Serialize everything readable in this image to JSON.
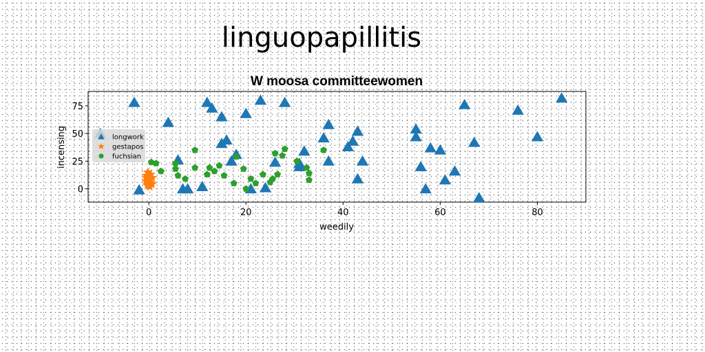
{
  "page": {
    "heading": "linguopapillitis"
  },
  "colors": {
    "longwork": "#1f77b4",
    "gestapos": "#ff7f0e",
    "fuchsian": "#2ca02c",
    "background": "#ffffff",
    "axes": "#000000"
  },
  "chart_data": {
    "type": "scatter",
    "title": "W moosa committeewomen",
    "xlabel": "weedily",
    "ylabel": "incensing",
    "xlim": [
      -12.5,
      90
    ],
    "ylim": [
      -12,
      88
    ],
    "xticks": [
      0,
      20,
      40,
      60,
      80
    ],
    "yticks": [
      0,
      25,
      50,
      75
    ],
    "grid": false,
    "legend_position": "center-left",
    "series": [
      {
        "name": "longwork",
        "marker": "triangle",
        "points": [
          [
            -10,
            50
          ],
          [
            -3,
            78
          ],
          [
            -2,
            -1
          ],
          [
            4,
            60
          ],
          [
            6,
            26
          ],
          [
            7,
            0
          ],
          [
            8,
            0
          ],
          [
            11,
            2
          ],
          [
            12,
            78
          ],
          [
            13,
            73
          ],
          [
            15,
            41
          ],
          [
            15,
            65
          ],
          [
            16,
            44
          ],
          [
            17,
            25
          ],
          [
            18,
            31
          ],
          [
            20,
            68
          ],
          [
            21,
            0
          ],
          [
            23,
            80
          ],
          [
            24,
            1
          ],
          [
            26,
            24
          ],
          [
            28,
            78
          ],
          [
            31,
            20
          ],
          [
            31,
            23
          ],
          [
            32,
            34
          ],
          [
            36,
            46
          ],
          [
            37,
            58
          ],
          [
            37,
            25
          ],
          [
            41,
            38
          ],
          [
            42,
            43
          ],
          [
            43,
            52
          ],
          [
            43,
            9
          ],
          [
            44,
            25
          ],
          [
            55,
            54
          ],
          [
            55,
            47
          ],
          [
            56,
            20
          ],
          [
            57,
            0
          ],
          [
            58,
            37
          ],
          [
            60,
            35
          ],
          [
            61,
            8
          ],
          [
            63,
            16
          ],
          [
            65,
            76
          ],
          [
            67,
            42
          ],
          [
            68,
            -8
          ],
          [
            76,
            71
          ],
          [
            80,
            47
          ],
          [
            85,
            82
          ]
        ]
      },
      {
        "name": "gestapos",
        "marker": "star",
        "points": [
          [
            -0.5,
            12
          ],
          [
            0,
            9
          ],
          [
            0.5,
            5
          ],
          [
            -0.3,
            3
          ],
          [
            0.4,
            13
          ],
          [
            -0.6,
            7
          ],
          [
            0.2,
            2
          ],
          [
            0.7,
            10
          ],
          [
            -0.2,
            15
          ],
          [
            0.1,
            6
          ],
          [
            0.6,
            4
          ],
          [
            -0.5,
            10
          ]
        ]
      },
      {
        "name": "fuchsian",
        "marker": "pentagon",
        "points": [
          [
            0.5,
            24
          ],
          [
            1.5,
            23
          ],
          [
            2.5,
            16
          ],
          [
            5.5,
            18
          ],
          [
            5.5,
            23
          ],
          [
            6,
            12
          ],
          [
            7.5,
            9
          ],
          [
            9.5,
            35
          ],
          [
            9.5,
            19
          ],
          [
            12,
            13
          ],
          [
            12.5,
            19
          ],
          [
            13.5,
            16
          ],
          [
            14.5,
            21
          ],
          [
            15.5,
            12
          ],
          [
            17.5,
            5
          ],
          [
            18,
            29
          ],
          [
            19.5,
            18
          ],
          [
            20,
            0
          ],
          [
            21,
            9
          ],
          [
            22,
            5
          ],
          [
            23.5,
            13
          ],
          [
            25,
            6
          ],
          [
            25.5,
            9
          ],
          [
            26,
            32
          ],
          [
            26.5,
            13
          ],
          [
            27.5,
            30
          ],
          [
            28,
            36
          ],
          [
            30.5,
            25
          ],
          [
            32.5,
            19
          ],
          [
            33,
            14
          ],
          [
            33,
            8
          ],
          [
            36,
            35
          ]
        ]
      }
    ]
  }
}
